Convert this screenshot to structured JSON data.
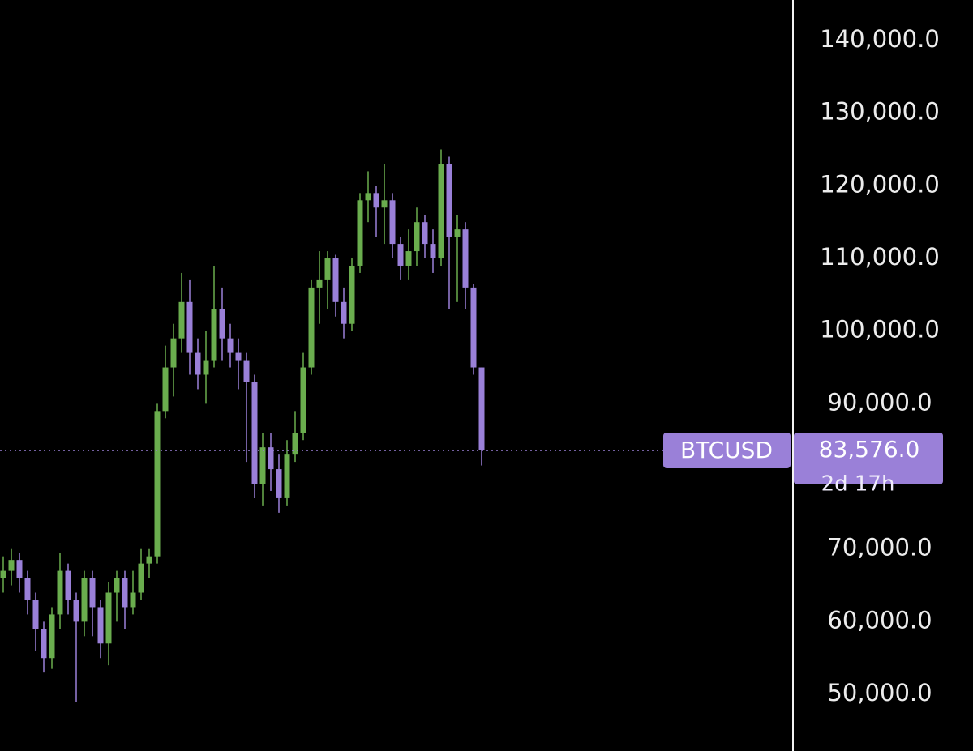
{
  "chart_data": {
    "type": "candlestick",
    "symbol": "BTCUSD",
    "countdown": "2d 17h",
    "last_price": {
      "value": 83576,
      "label": "83,576.0"
    },
    "up_color": "#6aad4e",
    "down_color": "#9a80d8",
    "ylim": [
      42200,
      145576
    ],
    "yticks": [
      {
        "value": 50000,
        "label": "50,000.0"
      },
      {
        "value": 60000,
        "label": "60,000.0"
      },
      {
        "value": 70000,
        "label": "70,000.0"
      },
      {
        "value": 90000,
        "label": "90,000.0"
      },
      {
        "value": 100000,
        "label": "100,000.0"
      },
      {
        "value": 110000,
        "label": "110,000.0"
      },
      {
        "value": 120000,
        "label": "120,000.0"
      },
      {
        "value": 130000,
        "label": "130,000.0"
      },
      {
        "value": 140000,
        "label": "140,000.0"
      }
    ],
    "open": [
      66000,
      67000,
      68500,
      66000,
      63000,
      59000,
      55000,
      61000,
      67000,
      63000,
      60000,
      66000,
      62000,
      57000,
      64000,
      66000,
      62000,
      64000,
      68000,
      69000,
      89000,
      95000,
      99000,
      104000,
      97000,
      94000,
      96000,
      103000,
      99000,
      97000,
      96000,
      93000,
      79000,
      84000,
      81000,
      77000,
      83000,
      86000,
      95000,
      106000,
      107000,
      110000,
      104000,
      101000,
      109000,
      118000,
      119000,
      117000,
      118000,
      112000,
      109000,
      111000,
      115000,
      112000,
      110000,
      123000,
      113000,
      114000,
      106000,
      95000
    ],
    "high": [
      69000,
      70000,
      69500,
      67000,
      64000,
      60000,
      62000,
      69500,
      68000,
      64000,
      67000,
      67000,
      63000,
      65500,
      67000,
      67000,
      67000,
      70000,
      70000,
      90000,
      98000,
      101000,
      108000,
      107000,
      99000,
      100000,
      109000,
      106000,
      101000,
      99000,
      97000,
      94000,
      86000,
      86000,
      83000,
      85000,
      89000,
      97000,
      107000,
      111000,
      111000,
      110500,
      106000,
      110000,
      119000,
      122000,
      120000,
      123000,
      119000,
      113000,
      114000,
      117000,
      116000,
      114000,
      125000,
      124000,
      116000,
      115000,
      106500,
      95000
    ],
    "low": [
      64000,
      65000,
      64000,
      61000,
      56000,
      53000,
      53500,
      59000,
      61000,
      49000,
      58000,
      58000,
      55000,
      54000,
      60000,
      59000,
      61000,
      63000,
      66000,
      68000,
      88000,
      91000,
      97000,
      94000,
      92000,
      90000,
      95000,
      96000,
      95000,
      92000,
      82000,
      77000,
      76000,
      78000,
      75000,
      76000,
      82000,
      85000,
      94000,
      101000,
      103000,
      102000,
      99000,
      100000,
      108000,
      115000,
      113000,
      112000,
      110000,
      107000,
      107000,
      109000,
      110000,
      108000,
      109000,
      103000,
      104000,
      103000,
      94000,
      81500
    ],
    "close": [
      67000,
      68500,
      66000,
      63000,
      59000,
      55000,
      61000,
      67000,
      63000,
      60000,
      66000,
      62000,
      57000,
      64000,
      66000,
      62000,
      64000,
      68000,
      69000,
      89000,
      95000,
      99000,
      104000,
      97000,
      94000,
      96000,
      103000,
      99000,
      97000,
      96000,
      93000,
      79000,
      84000,
      81000,
      77000,
      83000,
      86000,
      95000,
      106000,
      107000,
      110000,
      104000,
      101000,
      109000,
      118000,
      119000,
      117000,
      118000,
      112000,
      109000,
      111000,
      115000,
      112000,
      110000,
      123000,
      113000,
      114000,
      106000,
      95000,
      83576
    ]
  }
}
